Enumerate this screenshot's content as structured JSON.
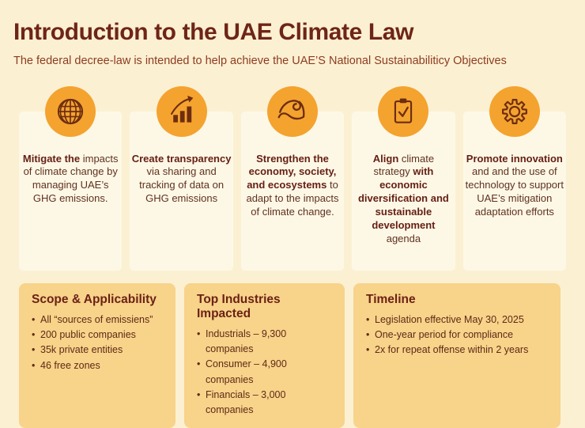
{
  "palette": {
    "background": "#fcf0d3",
    "panel": "#fdf8e6",
    "circle_orange": "#f4a32f",
    "glyph_maroon": "#6d2d10",
    "title_maroon": "#6e2517",
    "subtitle_rust": "#8c3c1f",
    "card_gold": "#f8d38a",
    "body_text": "#60301f"
  },
  "header": {
    "title": "Introduction to the UAE Climate Law",
    "subtitle": "The federal decree-law is intended to help achieve the UAE’S National Sustainabiliticy Objectives"
  },
  "pillars": [
    {
      "icon": "globe-icon",
      "segments": [
        {
          "text": "Mitigate the",
          "bold": true
        },
        {
          "text": " impacts of climate change by managing UAE’s GHG emissions.",
          "bold": false
        }
      ]
    },
    {
      "icon": "bar-chart-growth-icon",
      "segments": [
        {
          "text": "Create transparency",
          "bold": true
        },
        {
          "text": " via sharing and tracking of data on GHG emissions",
          "bold": false
        }
      ]
    },
    {
      "icon": "flexed-arm-icon",
      "segments": [
        {
          "text": "Strengthen the economy, society, and ecosystems",
          "bold": true
        },
        {
          "text": " to adapt to the impacts of climate change.",
          "bold": false
        }
      ]
    },
    {
      "icon": "clipboard-check-icon",
      "segments": [
        {
          "text": "Align",
          "bold": true
        },
        {
          "text": " climate strategy ",
          "bold": false
        },
        {
          "text": "with economic diversification and sustainable development",
          "bold": true
        },
        {
          "text": " agenda",
          "bold": false
        }
      ]
    },
    {
      "icon": "gear-icon",
      "segments": [
        {
          "text": "Promote innovation",
          "bold": true
        },
        {
          "text": " and and the use of technology to support UAE’s mitigation adaptation efforts",
          "bold": false
        }
      ]
    }
  ],
  "cards": [
    {
      "title": "Scope & Applicability",
      "bullets": [
        "All “sources of emissiens”",
        "200 public companies",
        "35k private entities",
        "46 free zones"
      ]
    },
    {
      "title": "Top Industries Impacted",
      "bullets": [
        "Industrials – 9,300 companies",
        "Consumer – 4,900 companies",
        "Financials – 3,000 companies"
      ]
    },
    {
      "title": "Timeline",
      "bullets": [
        "Legislation effective May 30, 2025",
        "One-year period for compliance",
        "2x for repeat offense within 2 years"
      ]
    }
  ]
}
